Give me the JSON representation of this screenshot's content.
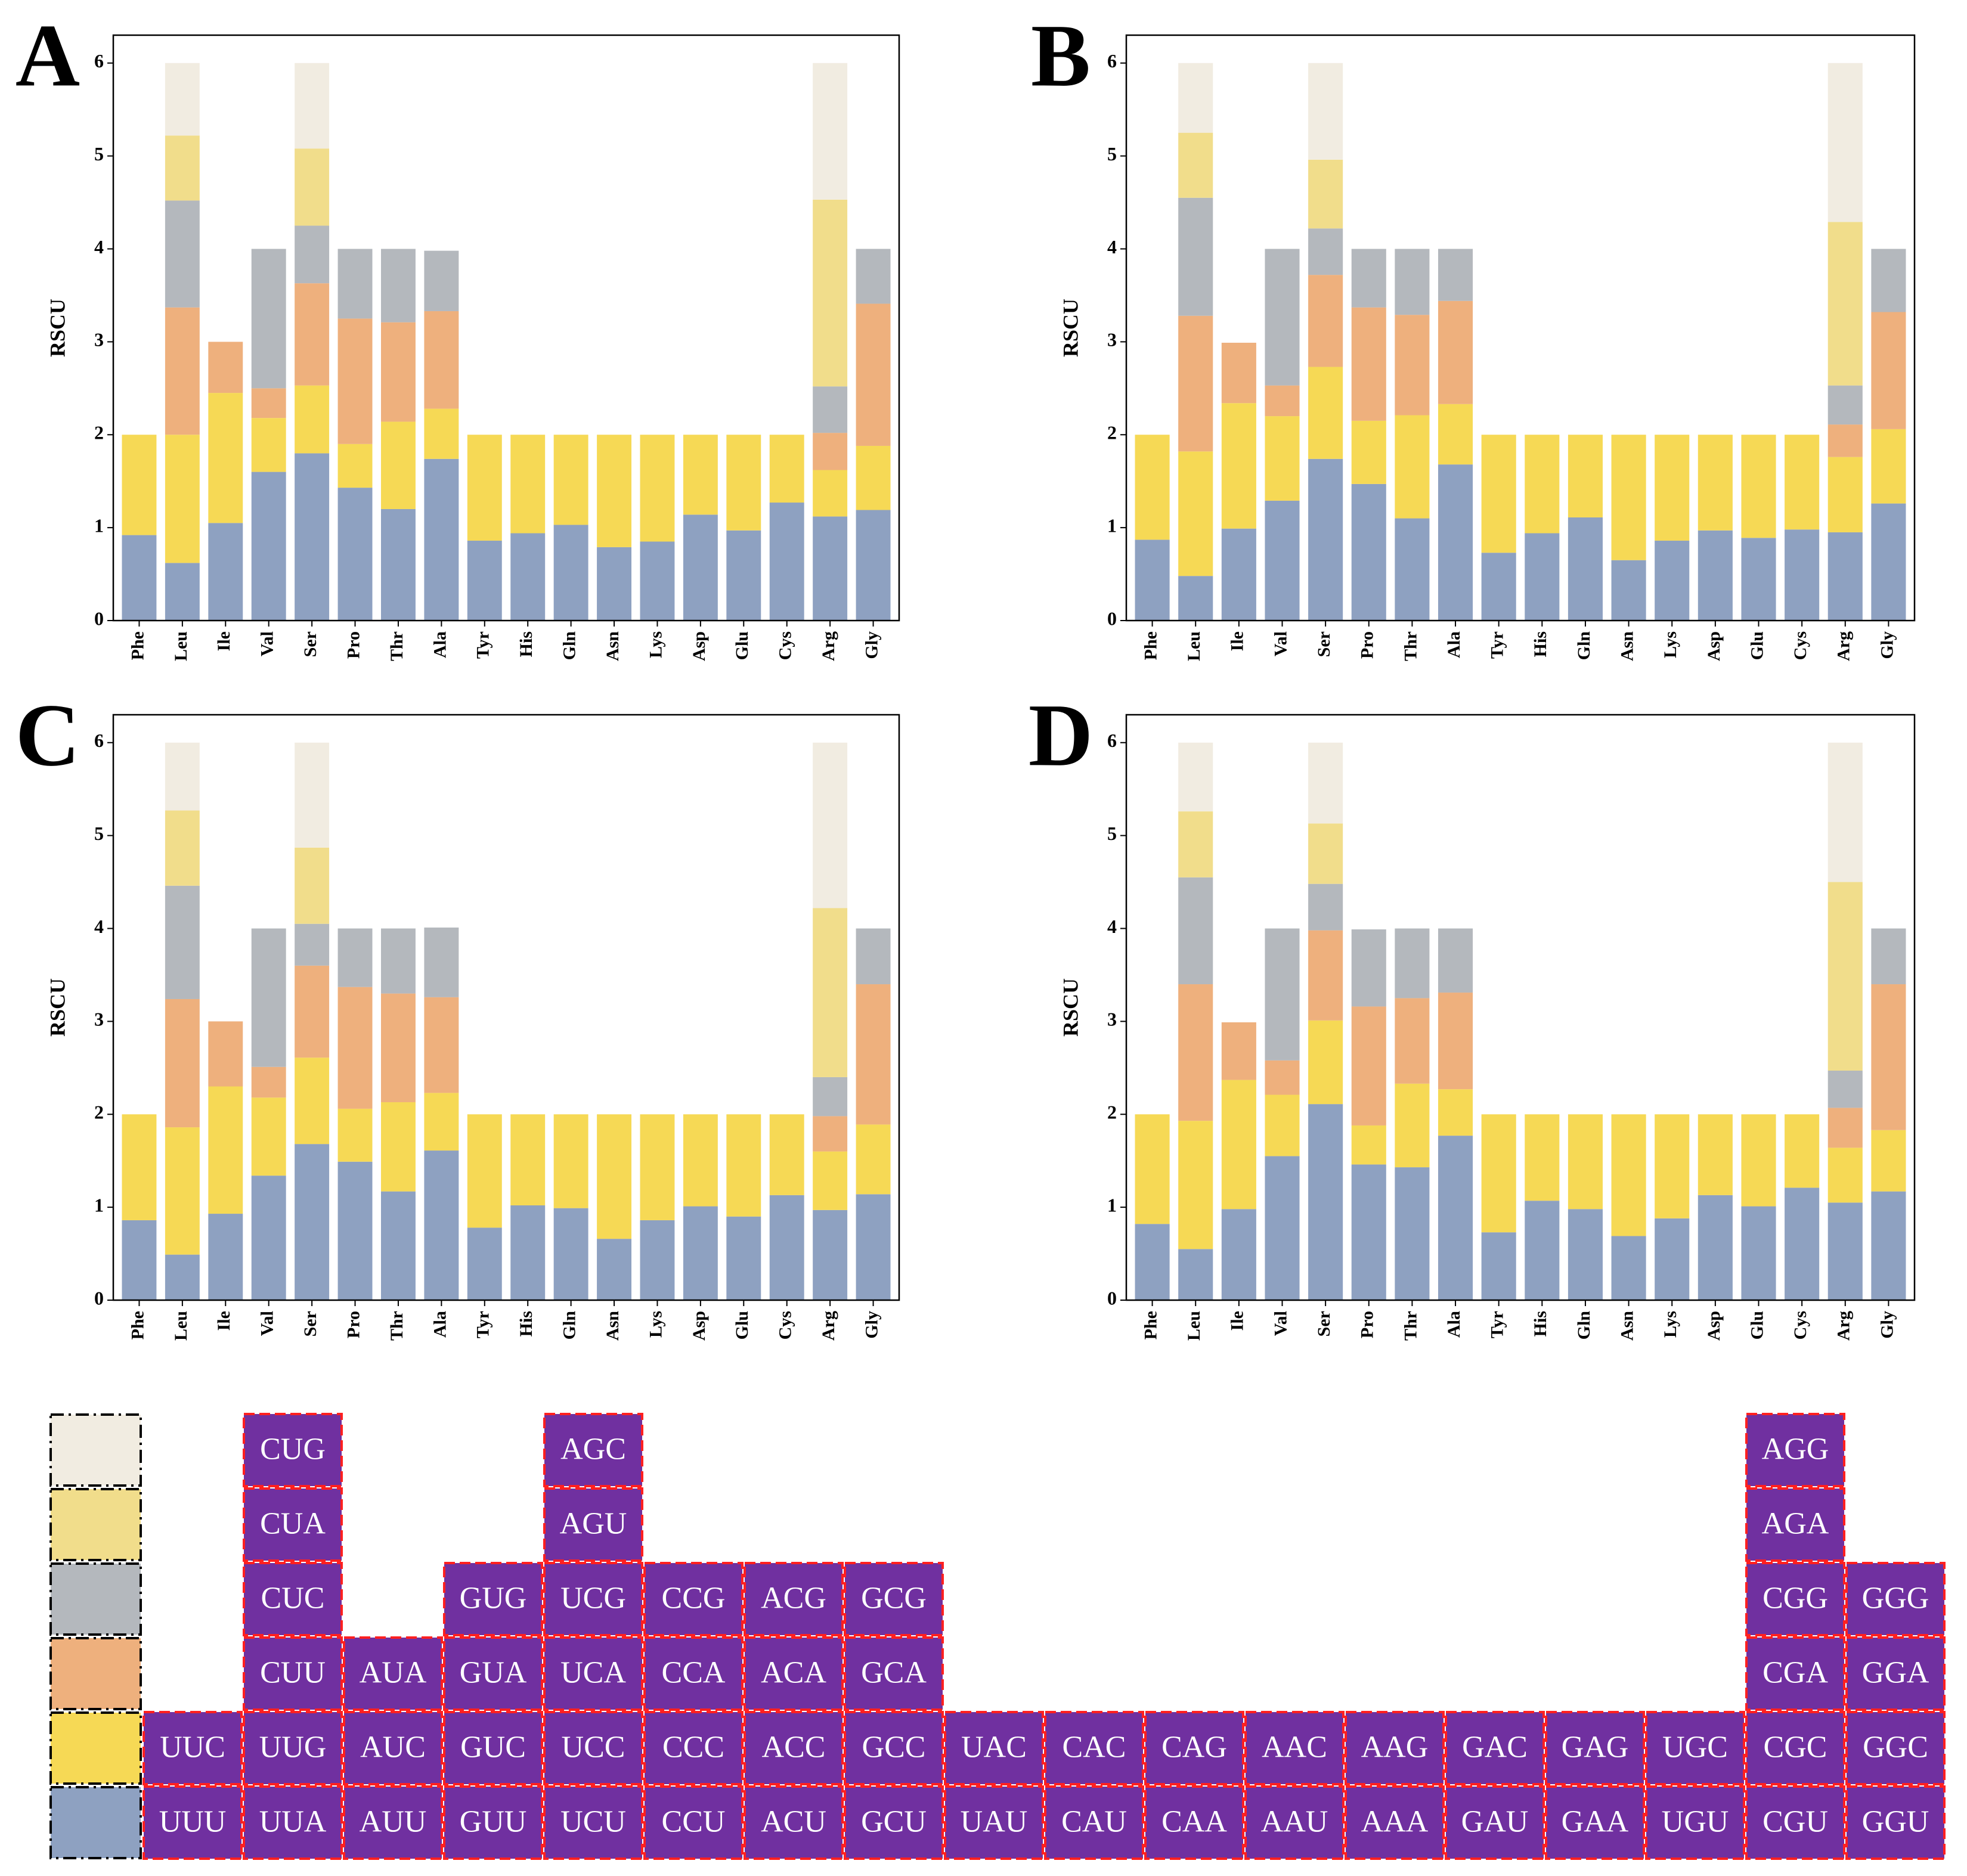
{
  "chart_data": [
    {
      "type": "bar",
      "label": "A",
      "ylabel": "RSCU",
      "categories": [
        "Phe",
        "Leu",
        "Ile",
        "Val",
        "Ser",
        "Pro",
        "Thr",
        "Ala",
        "Tyr",
        "His",
        "Gln",
        "Asn",
        "Lys",
        "Asp",
        "Glu",
        "Cys",
        "Arg",
        "Gly"
      ],
      "ylim": [
        0,
        6.3
      ],
      "yticks": [
        0,
        1,
        2,
        3,
        4,
        5,
        6
      ],
      "series": [
        {
          "color": "#8ea1c1",
          "values": [
            0.92,
            0.62,
            1.05,
            1.6,
            1.8,
            1.43,
            1.2,
            1.74,
            0.86,
            0.94,
            1.03,
            0.79,
            0.85,
            1.14,
            0.97,
            1.27,
            1.12,
            1.19
          ]
        },
        {
          "color": "#f6d955",
          "values": [
            1.08,
            1.38,
            1.4,
            0.58,
            0.73,
            0.47,
            0.94,
            0.54,
            1.14,
            1.06,
            0.97,
            1.21,
            1.15,
            0.86,
            1.03,
            0.73,
            0.5,
            0.69
          ]
        },
        {
          "color": "#eeb07d",
          "values": [
            null,
            1.37,
            0.55,
            0.32,
            1.1,
            1.35,
            1.07,
            1.05,
            null,
            null,
            null,
            null,
            null,
            null,
            null,
            null,
            0.4,
            1.53
          ]
        },
        {
          "color": "#b4b8bd",
          "values": [
            null,
            1.15,
            null,
            1.5,
            0.62,
            0.75,
            0.79,
            0.65,
            null,
            null,
            null,
            null,
            null,
            null,
            null,
            null,
            0.5,
            0.59
          ]
        },
        {
          "color": "#f1dd8b",
          "values": [
            null,
            0.7,
            null,
            null,
            0.83,
            null,
            null,
            null,
            null,
            null,
            null,
            null,
            null,
            null,
            null,
            null,
            2.01,
            null
          ]
        },
        {
          "color": "#f1ece1",
          "values": [
            null,
            0.78,
            null,
            null,
            0.92,
            null,
            null,
            null,
            null,
            null,
            null,
            null,
            null,
            null,
            null,
            null,
            1.47,
            null
          ]
        }
      ]
    },
    {
      "type": "bar",
      "label": "B",
      "ylabel": "RSCU",
      "categories": [
        "Phe",
        "Leu",
        "Ile",
        "Val",
        "Ser",
        "Pro",
        "Thr",
        "Ala",
        "Tyr",
        "His",
        "Gln",
        "Asn",
        "Lys",
        "Asp",
        "Glu",
        "Cys",
        "Arg",
        "Gly"
      ],
      "ylim": [
        0,
        6.3
      ],
      "yticks": [
        0,
        1,
        2,
        3,
        4,
        5,
        6
      ],
      "series": [
        {
          "color": "#8ea1c1",
          "values": [
            0.87,
            0.48,
            0.99,
            1.29,
            1.74,
            1.47,
            1.1,
            1.68,
            0.73,
            0.94,
            1.11,
            0.65,
            0.86,
            0.97,
            0.89,
            0.98,
            0.95,
            1.26
          ]
        },
        {
          "color": "#f6d955",
          "values": [
            1.13,
            1.34,
            1.35,
            0.91,
            0.99,
            0.68,
            1.11,
            0.65,
            1.27,
            1.06,
            0.89,
            1.35,
            1.14,
            1.03,
            1.11,
            1.02,
            0.81,
            0.8
          ]
        },
        {
          "color": "#eeb07d",
          "values": [
            null,
            1.46,
            0.65,
            0.33,
            0.99,
            1.22,
            1.08,
            1.11,
            null,
            null,
            null,
            null,
            null,
            null,
            null,
            null,
            0.35,
            1.26
          ]
        },
        {
          "color": "#b4b8bd",
          "values": [
            null,
            1.27,
            null,
            1.47,
            0.5,
            0.63,
            0.71,
            0.56,
            null,
            null,
            null,
            null,
            null,
            null,
            null,
            null,
            0.42,
            0.68
          ]
        },
        {
          "color": "#f1dd8b",
          "values": [
            null,
            0.7,
            null,
            null,
            0.74,
            null,
            null,
            null,
            null,
            null,
            null,
            null,
            null,
            null,
            null,
            null,
            1.76,
            null
          ]
        },
        {
          "color": "#f1ece1",
          "values": [
            null,
            0.75,
            null,
            null,
            1.04,
            null,
            null,
            null,
            null,
            null,
            null,
            null,
            null,
            null,
            null,
            null,
            1.71,
            null
          ]
        }
      ]
    },
    {
      "type": "bar",
      "label": "C",
      "ylabel": "RSCU",
      "categories": [
        "Phe",
        "Leu",
        "Ile",
        "Val",
        "Ser",
        "Pro",
        "Thr",
        "Ala",
        "Tyr",
        "His",
        "Gln",
        "Asn",
        "Lys",
        "Asp",
        "Glu",
        "Cys",
        "Arg",
        "Gly"
      ],
      "ylim": [
        0,
        6.3
      ],
      "yticks": [
        0,
        1,
        2,
        3,
        4,
        5,
        6
      ],
      "series": [
        {
          "color": "#8ea1c1",
          "values": [
            0.86,
            0.49,
            0.93,
            1.34,
            1.68,
            1.49,
            1.17,
            1.61,
            0.78,
            1.02,
            0.99,
            0.66,
            0.86,
            1.01,
            0.9,
            1.13,
            0.97,
            1.14
          ]
        },
        {
          "color": "#f6d955",
          "values": [
            1.14,
            1.37,
            1.37,
            0.84,
            0.93,
            0.57,
            0.96,
            0.62,
            1.22,
            0.98,
            1.01,
            1.34,
            1.14,
            0.99,
            1.1,
            0.87,
            0.63,
            0.75
          ]
        },
        {
          "color": "#eeb07d",
          "values": [
            null,
            1.38,
            0.7,
            0.33,
            0.99,
            1.31,
            1.17,
            1.03,
            null,
            null,
            null,
            null,
            null,
            null,
            null,
            null,
            0.38,
            1.51
          ]
        },
        {
          "color": "#b4b8bd",
          "values": [
            null,
            1.22,
            null,
            1.49,
            0.45,
            0.63,
            0.7,
            0.75,
            null,
            null,
            null,
            null,
            null,
            null,
            null,
            null,
            0.42,
            0.6
          ]
        },
        {
          "color": "#f1dd8b",
          "values": [
            null,
            0.81,
            null,
            null,
            0.82,
            null,
            null,
            null,
            null,
            null,
            null,
            null,
            null,
            null,
            null,
            null,
            1.82,
            null
          ]
        },
        {
          "color": "#f1ece1",
          "values": [
            null,
            0.73,
            null,
            null,
            1.13,
            null,
            null,
            null,
            null,
            null,
            null,
            null,
            null,
            null,
            null,
            null,
            1.78,
            null
          ]
        }
      ]
    },
    {
      "type": "bar",
      "label": "D",
      "ylabel": "RSCU",
      "categories": [
        "Phe",
        "Leu",
        "Ile",
        "Val",
        "Ser",
        "Pro",
        "Thr",
        "Ala",
        "Tyr",
        "His",
        "Gln",
        "Asn",
        "Lys",
        "Asp",
        "Glu",
        "Cys",
        "Arg",
        "Gly"
      ],
      "ylim": [
        0,
        6.3
      ],
      "yticks": [
        0,
        1,
        2,
        3,
        4,
        5,
        6
      ],
      "series": [
        {
          "color": "#8ea1c1",
          "values": [
            0.82,
            0.55,
            0.98,
            1.55,
            2.11,
            1.46,
            1.43,
            1.77,
            0.73,
            1.07,
            0.98,
            0.69,
            0.88,
            1.13,
            1.01,
            1.21,
            1.05,
            1.17
          ]
        },
        {
          "color": "#f6d955",
          "values": [
            1.18,
            1.38,
            1.39,
            0.66,
            0.9,
            0.42,
            0.9,
            0.5,
            1.27,
            0.93,
            1.02,
            1.31,
            1.12,
            0.87,
            0.99,
            0.79,
            0.59,
            0.66
          ]
        },
        {
          "color": "#eeb07d",
          "values": [
            null,
            1.47,
            0.62,
            0.37,
            0.97,
            1.28,
            0.92,
            1.04,
            null,
            null,
            null,
            null,
            null,
            null,
            null,
            null,
            0.43,
            1.57
          ]
        },
        {
          "color": "#b4b8bd",
          "values": [
            null,
            1.15,
            null,
            1.42,
            0.5,
            0.83,
            0.75,
            0.69,
            null,
            null,
            null,
            null,
            null,
            null,
            null,
            null,
            0.4,
            0.6
          ]
        },
        {
          "color": "#f1dd8b",
          "values": [
            null,
            0.71,
            null,
            null,
            0.65,
            null,
            null,
            null,
            null,
            null,
            null,
            null,
            null,
            null,
            null,
            null,
            2.03,
            null
          ]
        },
        {
          "color": "#f1ece1",
          "values": [
            null,
            0.74,
            null,
            null,
            0.87,
            null,
            null,
            null,
            null,
            null,
            null,
            null,
            null,
            null,
            null,
            null,
            1.5,
            null
          ]
        }
      ]
    }
  ],
  "codon_table": {
    "colors": [
      "#8ea1c1",
      "#f6d955",
      "#eeb07d",
      "#b4b8bd",
      "#f1dd8b",
      "#f1ece1"
    ],
    "levels": [
      [
        "UUU",
        "UUA",
        "AUU",
        "GUU",
        "UCU",
        "CCU",
        "ACU",
        "GCU",
        "UAU",
        "CAU",
        "CAA",
        "AAU",
        "AAA",
        "GAU",
        "GAA",
        "UGU",
        "CGU",
        "GGU"
      ],
      [
        "UUC",
        "UUG",
        "AUC",
        "GUC",
        "UCC",
        "CCC",
        "ACC",
        "GCC",
        "UAC",
        "CAC",
        "CAG",
        "AAC",
        "AAG",
        "GAC",
        "GAG",
        "UGC",
        "CGC",
        "GGC"
      ],
      [
        null,
        "CUU",
        "AUA",
        "GUA",
        "UCA",
        "CCA",
        "ACA",
        "GCA",
        null,
        null,
        null,
        null,
        null,
        null,
        null,
        null,
        "CGA",
        "GGA"
      ],
      [
        null,
        "CUC",
        null,
        "GUG",
        "UCG",
        "CCG",
        "ACG",
        "GCG",
        null,
        null,
        null,
        null,
        null,
        null,
        null,
        null,
        "CGG",
        "GGG"
      ],
      [
        null,
        "CUA",
        null,
        null,
        "AGU",
        null,
        null,
        null,
        null,
        null,
        null,
        null,
        null,
        null,
        null,
        null,
        "AGA",
        null
      ],
      [
        null,
        "CUG",
        null,
        null,
        "AGC",
        null,
        null,
        null,
        null,
        null,
        null,
        null,
        null,
        null,
        null,
        null,
        "AGG",
        null
      ]
    ]
  }
}
